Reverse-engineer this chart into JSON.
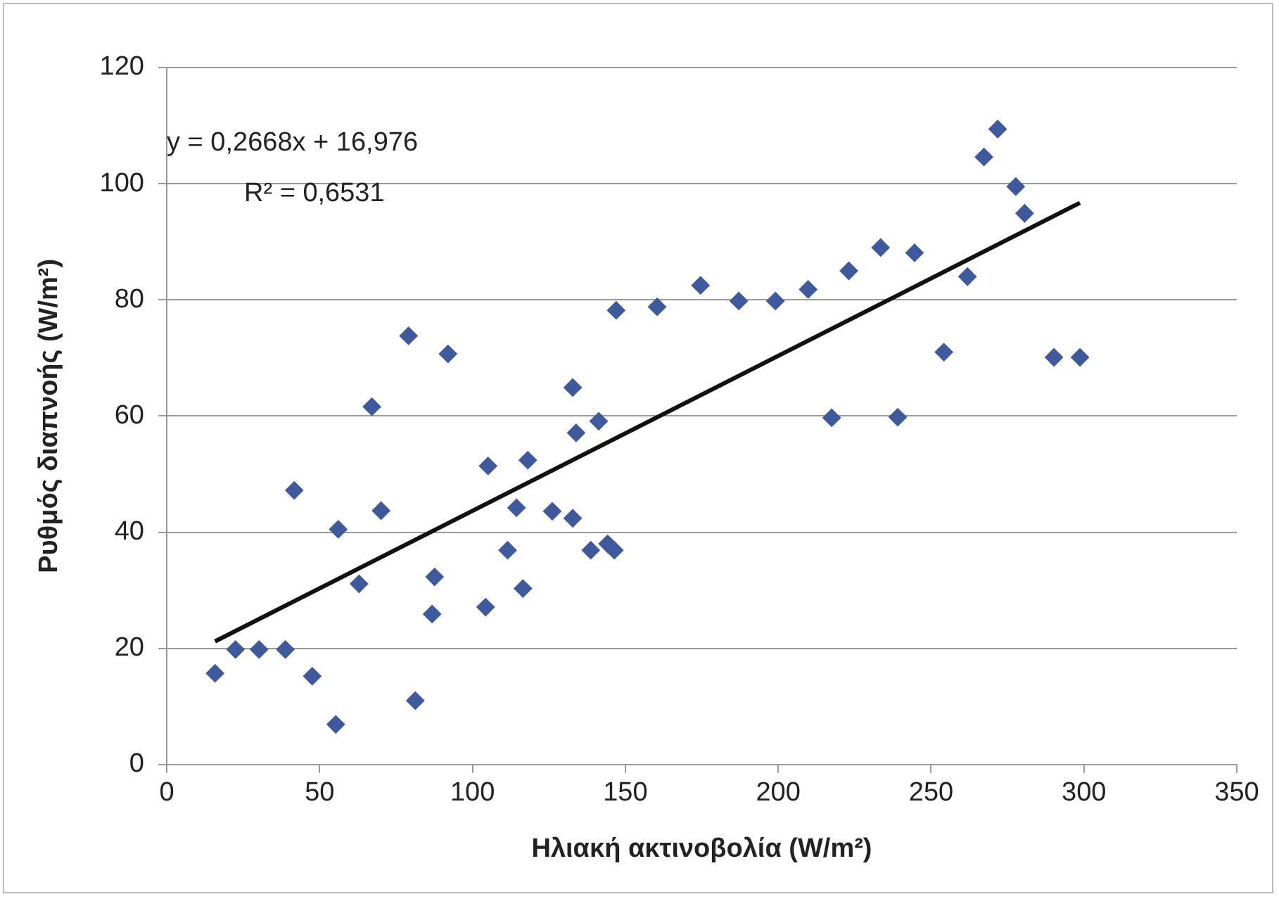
{
  "chart_data": {
    "type": "scatter",
    "xlabel": "Ηλιακή ακτινοβολία (W/m²)",
    "ylabel": "Ρυθμός διαπνοής (W/m²)",
    "xlim": [
      0,
      350
    ],
    "xticks": [
      0,
      50,
      100,
      150,
      200,
      250,
      300,
      350
    ],
    "ylim": [
      0,
      120
    ],
    "yticks": [
      0,
      20,
      40,
      60,
      80,
      100,
      120
    ],
    "grid": "y",
    "legend": false,
    "annotations": [
      "y = 0,2668x + 16,976",
      "R² = 0,6531"
    ],
    "series": [
      {
        "type": "scatter",
        "marker": "diamond",
        "color": "#3f5a9c",
        "x": [
          15.8,
          22.5,
          30.2,
          38.8,
          41.7,
          47.6,
          55.3,
          56.1,
          62.9,
          67.1,
          70.1,
          79.1,
          81.3,
          86.8,
          87.6,
          92,
          104.3,
          105.1,
          111.5,
          114.4,
          116.5,
          118.1,
          126.1,
          132.8,
          132.8,
          133.9,
          138.7,
          141.3,
          144.2,
          146.4,
          147,
          160.4,
          174.6,
          187.1,
          199.1,
          209.8,
          217.5,
          223.1,
          233.5,
          239.1,
          244.6,
          254.2,
          261.9,
          267.3,
          271.8,
          277.7,
          280.6,
          290.2,
          298.7
        ],
        "values": [
          15.7,
          19.8,
          19.8,
          19.8,
          47.2,
          15.2,
          6.9,
          40.5,
          31.1,
          61.6,
          43.7,
          73.8,
          11,
          25.9,
          32.3,
          70.7,
          27.1,
          51.4,
          36.9,
          44.2,
          30.3,
          52.4,
          43.6,
          42.4,
          64.9,
          57.1,
          36.9,
          59.1,
          38,
          36.9,
          78.2,
          78.8,
          82.5,
          79.8,
          79.8,
          81.8,
          59.7,
          85,
          89,
          59.8,
          88.1,
          71,
          84,
          104.6,
          109.4,
          99.5,
          94.9,
          70.1,
          70.1
        ]
      },
      {
        "type": "line",
        "marker": "none",
        "color": "#111111",
        "x": [
          15.8,
          298.7
        ],
        "values": [
          21.2,
          96.7
        ]
      }
    ]
  }
}
